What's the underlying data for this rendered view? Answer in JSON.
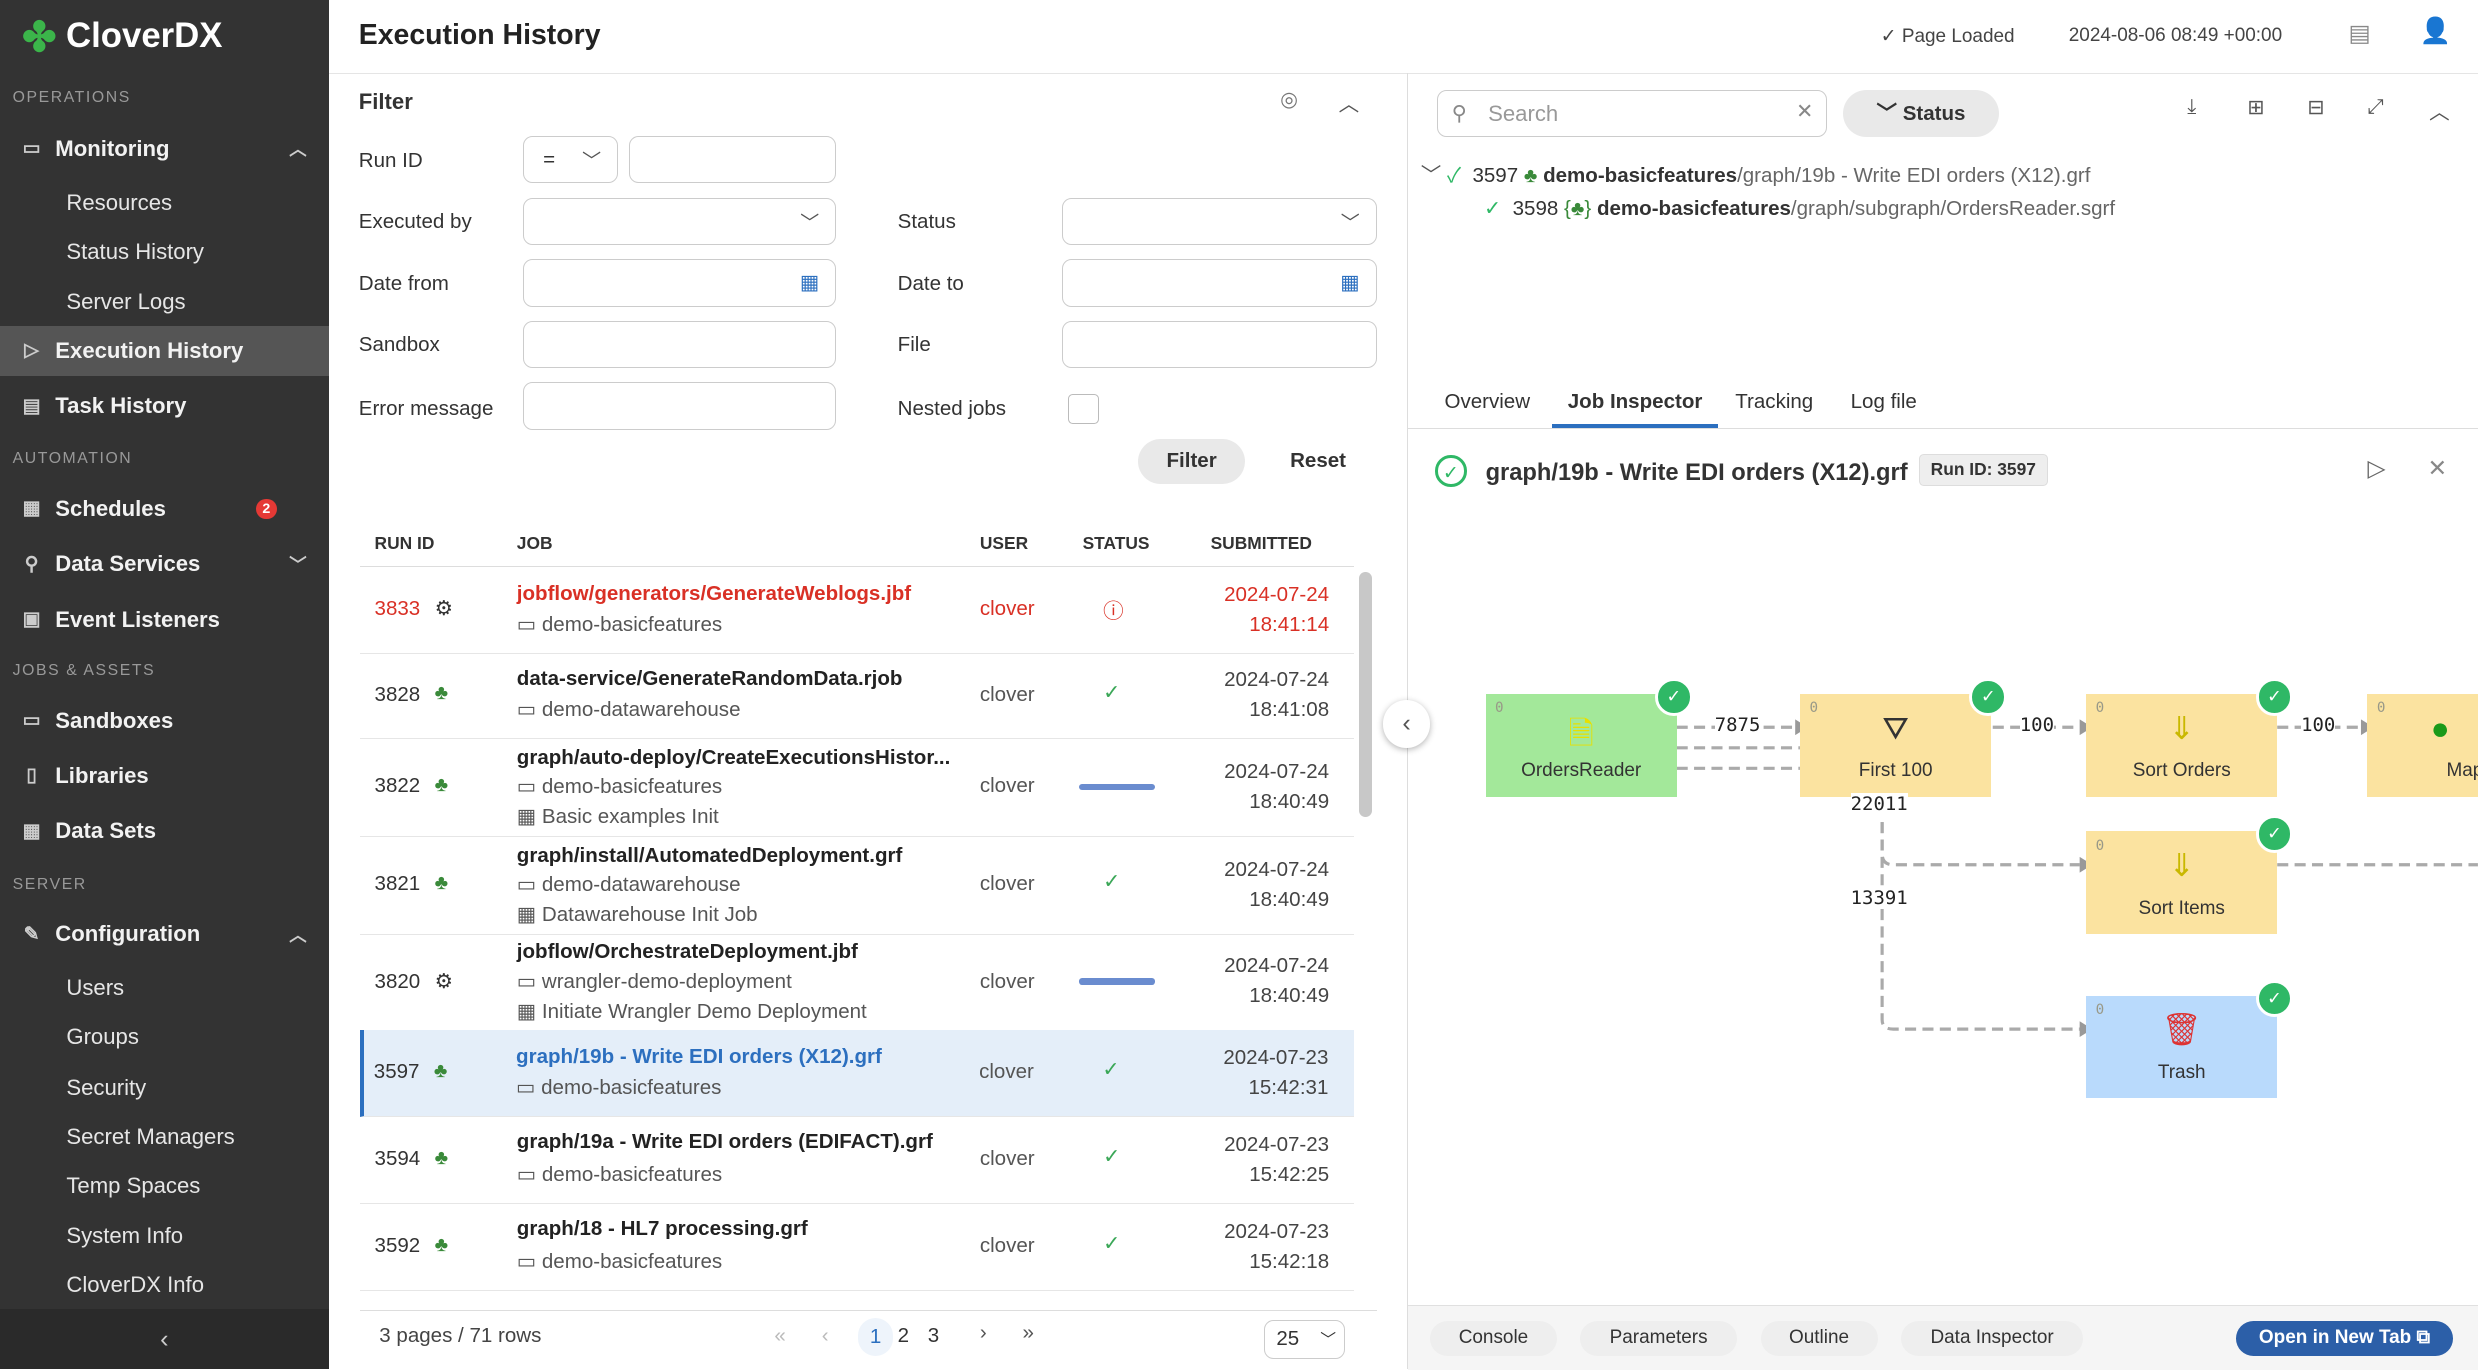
{
  "app": {
    "logo": "CloverDX"
  },
  "sidebar": {
    "sections": [
      "OPERATIONS",
      "AUTOMATION",
      "JOBS & ASSETS",
      "SERVER"
    ],
    "monitoring": "Monitoring",
    "resources": "Resources",
    "status_history": "Status History",
    "server_logs": "Server Logs",
    "execution_history": "Execution History",
    "task_history": "Task History",
    "schedules": "Schedules",
    "schedules_badge": "2",
    "data_services": "Data Services",
    "event_listeners": "Event Listeners",
    "sandboxes": "Sandboxes",
    "libraries": "Libraries",
    "data_sets": "Data Sets",
    "configuration": "Configuration",
    "users": "Users",
    "groups": "Groups",
    "security": "Security",
    "secret_managers": "Secret Managers",
    "temp_spaces": "Temp Spaces",
    "system_info": "System Info",
    "cloverdx_info": "CloverDX Info"
  },
  "header": {
    "title": "Execution History",
    "status": "Page Loaded",
    "datetime": "2024-08-06 08:49 +00:00"
  },
  "filter": {
    "title": "Filter",
    "run_id": "Run ID",
    "run_id_op": "=",
    "executed_by": "Executed by",
    "status": "Status",
    "date_from": "Date from",
    "date_to": "Date to",
    "sandbox": "Sandbox",
    "file": "File",
    "error_message": "Error message",
    "nested_jobs": "Nested jobs",
    "filter_btn": "Filter",
    "reset_btn": "Reset"
  },
  "table": {
    "columns": [
      "RUN ID",
      "JOB",
      "USER",
      "STATUS",
      "SUBMITTED"
    ],
    "rows": [
      {
        "id": "3833",
        "job": "jobflow/generators/GenerateWeblogs.jbf",
        "sandbox": "demo-basicfeatures",
        "user": "clover",
        "status": "error",
        "date": "2024-07-24",
        "time": "18:41:14"
      },
      {
        "id": "3828",
        "job": "data-service/GenerateRandomData.rjob",
        "sandbox": "demo-datawarehouse",
        "user": "clover",
        "status": "success",
        "date": "2024-07-24",
        "time": "18:41:08"
      },
      {
        "id": "3822",
        "job": "graph/auto-deploy/CreateExecutionsHistor...",
        "sandbox": "demo-basicfeatures",
        "trigger": "Basic examples Init",
        "user": "clover",
        "status": "running",
        "date": "2024-07-24",
        "time": "18:40:49"
      },
      {
        "id": "3821",
        "job": "graph/install/AutomatedDeployment.grf",
        "sandbox": "demo-datawarehouse",
        "trigger": "Datawarehouse Init Job",
        "user": "clover",
        "status": "success",
        "date": "2024-07-24",
        "time": "18:40:49"
      },
      {
        "id": "3820",
        "job": "jobflow/OrchestrateDeployment.jbf",
        "sandbox": "wrangler-demo-deployment",
        "trigger": "Initiate Wrangler Demo Deployment",
        "user": "clover",
        "status": "running",
        "date": "2024-07-24",
        "time": "18:40:49"
      },
      {
        "id": "3597",
        "job": "graph/19b - Write EDI orders (X12).grf",
        "sandbox": "demo-basicfeatures",
        "user": "clover",
        "status": "success",
        "date": "2024-07-23",
        "time": "15:42:31"
      },
      {
        "id": "3594",
        "job": "graph/19a - Write EDI orders (EDIFACT).grf",
        "sandbox": "demo-basicfeatures",
        "user": "clover",
        "status": "success",
        "date": "2024-07-23",
        "time": "15:42:25"
      },
      {
        "id": "3592",
        "job": "graph/18 - HL7 processing.grf",
        "sandbox": "demo-basicfeatures",
        "user": "clover",
        "status": "success",
        "date": "2024-07-23",
        "time": "15:42:18"
      }
    ]
  },
  "pagination": {
    "summary": "3 pages / 71 rows",
    "pages": [
      "1",
      "2",
      "3"
    ],
    "current": "1",
    "page_size": "25"
  },
  "detail": {
    "search_placeholder": "Search",
    "status_btn": "Status",
    "tree": [
      {
        "id": "3597",
        "sandbox": "demo-basicfeatures",
        "path": "/graph/19b - Write EDI orders (X12).grf"
      },
      {
        "id": "3598",
        "sandbox": "demo-basicfeatures",
        "path": "/graph/subgraph/OrdersReader.sgrf"
      }
    ],
    "tabs": [
      "Overview",
      "Job Inspector",
      "Tracking",
      "Log file"
    ],
    "active_tab": "Job Inspector",
    "job_title": "graph/19b - Write EDI orders (X12).grf",
    "run_badge": "Run ID: 3597",
    "nodes": {
      "orders_reader": "OrdersReader",
      "first100": "First 100",
      "sort_orders": "Sort Orders",
      "map": "Map",
      "sort_items": "Sort Items",
      "trash": "Trash",
      "port": "0"
    },
    "edges": {
      "e1": "7875",
      "e2": "100",
      "e3": "100",
      "e4": "22011",
      "e5": "13391"
    },
    "bottom_tabs": [
      "Console",
      "Parameters",
      "Outline",
      "Data Inspector"
    ],
    "open_new_tab": "Open in New Tab"
  },
  "colors": {
    "accent": "#2c6fbf",
    "success": "#2fb866",
    "error": "#d93025",
    "sidebar": "#333333"
  }
}
